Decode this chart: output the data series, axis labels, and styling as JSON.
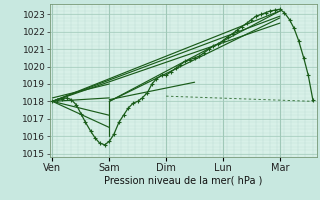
{
  "title": "",
  "xlabel": "Pression niveau de la mer( hPa )",
  "bg_color": "#c8e8e0",
  "plot_bg_color": "#d8f0e8",
  "grid_color_major": "#a0c8b8",
  "grid_color_minor": "#b8dcd0",
  "line_color": "#1a5c1a",
  "ylim_lo": 1014.8,
  "ylim_hi": 1023.6,
  "yticks": [
    1015,
    1016,
    1017,
    1018,
    1019,
    1020,
    1021,
    1022,
    1023
  ],
  "day_labels": [
    "Ven",
    "Sam",
    "Dim",
    "Lun",
    "Mar"
  ],
  "day_x": [
    0,
    1,
    2,
    3,
    4
  ],
  "xlim_lo": -0.05,
  "xlim_hi": 4.65,
  "fan_lines": [
    {
      "x": [
        0.0,
        4.0
      ],
      "y": [
        1018.0,
        1023.2
      ]
    },
    {
      "x": [
        0.0,
        4.0
      ],
      "y": [
        1018.0,
        1022.9
      ]
    },
    {
      "x": [
        0.0,
        4.0
      ],
      "y": [
        1018.0,
        1022.5
      ]
    },
    {
      "x": [
        1.0,
        4.0
      ],
      "y": [
        1018.0,
        1023.2
      ]
    },
    {
      "x": [
        1.0,
        4.0
      ],
      "y": [
        1018.0,
        1022.8
      ]
    },
    {
      "x": [
        1.0,
        2.5
      ],
      "y": [
        1018.1,
        1019.1
      ]
    },
    {
      "x": [
        0.0,
        1.0
      ],
      "y": [
        1018.2,
        1019.0
      ]
    },
    {
      "x": [
        0.0,
        1.0
      ],
      "y": [
        1018.0,
        1018.2
      ]
    },
    {
      "x": [
        0.0,
        1.0
      ],
      "y": [
        1018.0,
        1017.2
      ]
    },
    {
      "x": [
        0.0,
        1.0
      ],
      "y": [
        1018.0,
        1016.5
      ]
    },
    {
      "x": [
        1.0,
        1.0
      ],
      "y": [
        1018.0,
        1016.0
      ]
    }
  ],
  "dashed_line": {
    "x": [
      2.0,
      4.6
    ],
    "y": [
      1018.3,
      1018.0
    ]
  },
  "main_curve_x": [
    0.0,
    0.08,
    0.17,
    0.25,
    0.33,
    0.42,
    0.5,
    0.58,
    0.67,
    0.75,
    0.83,
    0.92,
    1.0,
    1.08,
    1.17,
    1.25,
    1.33,
    1.42,
    1.5,
    1.58,
    1.67,
    1.75,
    1.83,
    1.92,
    2.0,
    2.08,
    2.17,
    2.25,
    2.33,
    2.42,
    2.5,
    2.58,
    2.67,
    2.75,
    2.83,
    2.92,
    3.0,
    3.08,
    3.17,
    3.25,
    3.33,
    3.42,
    3.5,
    3.58,
    3.67,
    3.75,
    3.83,
    3.92,
    4.0,
    4.08,
    4.17,
    4.25,
    4.33,
    4.42,
    4.5,
    4.58
  ],
  "main_curve_y": [
    1018.0,
    1018.1,
    1018.15,
    1018.2,
    1018.1,
    1017.8,
    1017.3,
    1016.8,
    1016.3,
    1015.9,
    1015.6,
    1015.5,
    1015.7,
    1016.1,
    1016.8,
    1017.2,
    1017.6,
    1017.9,
    1018.0,
    1018.2,
    1018.5,
    1019.0,
    1019.3,
    1019.5,
    1019.5,
    1019.7,
    1019.9,
    1020.1,
    1020.3,
    1020.4,
    1020.5,
    1020.6,
    1020.8,
    1021.0,
    1021.2,
    1021.3,
    1021.5,
    1021.7,
    1021.9,
    1022.1,
    1022.3,
    1022.5,
    1022.7,
    1022.9,
    1023.0,
    1023.1,
    1023.2,
    1023.25,
    1023.3,
    1023.1,
    1022.7,
    1022.2,
    1021.5,
    1020.5,
    1019.5,
    1018.1
  ],
  "label_fontsize": 7,
  "tick_fontsize": 6.5
}
